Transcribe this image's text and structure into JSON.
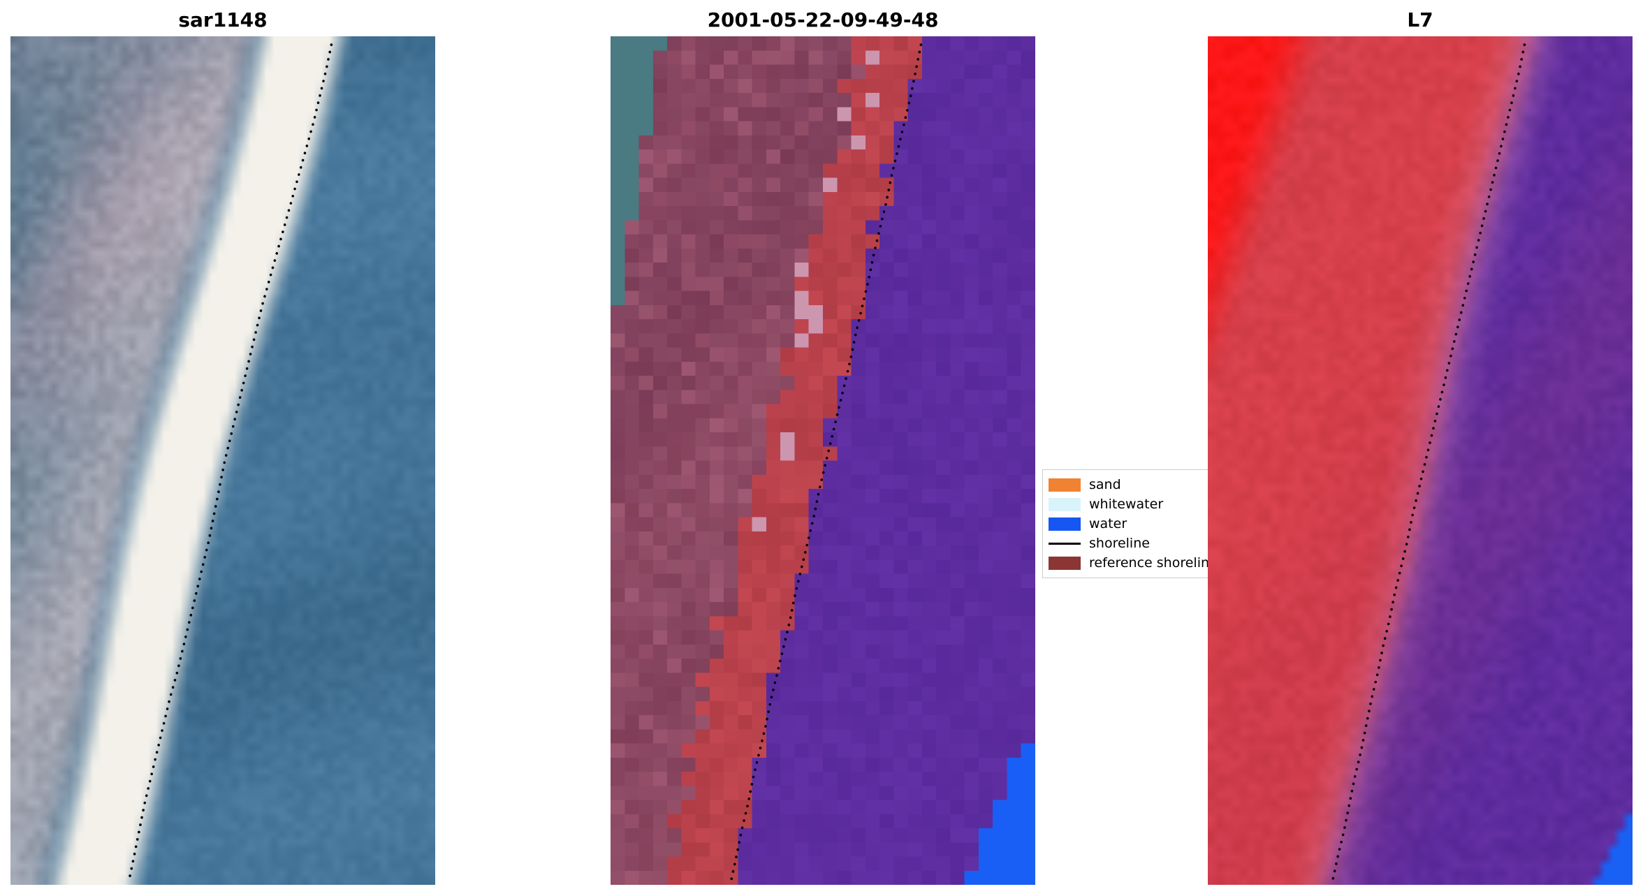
{
  "figure": {
    "background": "#ffffff",
    "panels": [
      {
        "title": "sar1148",
        "kind": "SAR RGB image of coastline with dotted detected shoreline",
        "palette": {
          "water": "#4e7fa3",
          "water_dark": "#3a698c",
          "surf_white": "#f3f1ea",
          "land_slate": "#647d92",
          "land_mauve": "#a198a8",
          "land_light": "#c0bbc3",
          "land_teal": "#3e6a84"
        },
        "shoreline_color": "#000000"
      },
      {
        "title": "2001-05-22-09-49-48",
        "kind": "classified scene with class colours and dotted shoreline",
        "palette": {
          "water_class": "#5d2da0",
          "sand_class": "#ba424c",
          "reference": "#8f4b64",
          "teal_patch": "#4a7a82",
          "whitewater_px": "#cd96af",
          "blue_water": "#195ff5"
        },
        "shoreline_color": "#000000"
      },
      {
        "title": "L7",
        "kind": "Landsat-7 false colour image with dotted shoreline",
        "palette": {
          "red_land": "#d6404a",
          "bright_red": "#fc1616",
          "purple_water": "#5e2c9e",
          "pink_edge": "#d584b4",
          "blue_corner": "#1960f4"
        },
        "shoreline_color": "#000000"
      }
    ],
    "legend": {
      "border_color": "#cccccc",
      "items": [
        {
          "label": "sand",
          "swatch": "patch",
          "color": "#f08232"
        },
        {
          "label": "whitewater",
          "swatch": "patch",
          "color": "#d8f4fa"
        },
        {
          "label": "water",
          "swatch": "patch",
          "color": "#1656f2"
        },
        {
          "label": "shoreline",
          "swatch": "line",
          "color": "#000000"
        },
        {
          "label": "reference shoreline",
          "swatch": "patch",
          "color": "#8c3535"
        }
      ]
    }
  },
  "chart_data": {
    "type": "image",
    "n_panels": 3,
    "panel_titles": [
      "sar1148",
      "2001-05-22-09-49-48",
      "L7"
    ],
    "legend_entries": [
      "sand",
      "whitewater",
      "water",
      "shoreline",
      "reference shoreline"
    ],
    "content_notes": [
      "Left panel: blue-grey SAR image, diagonal white surf band from top-right toward bottom-left, black dotted shoreline along seaward edge of the band",
      "Middle panel: classified image; dusky mauve reference band and brick-red sand band on the left, purple water on the right, small teal patch top-left, bright blue patch bottom-right, dotted shoreline on the sand/water boundary",
      "Right panel: red land on the left with saturated red blob in the top-left corner, purple water on the right, small blue patch bottom-right, dotted shoreline along the boundary"
    ],
    "shoreline": {
      "coords": "fraction of panel width",
      "top_x_frac": 0.75,
      "bottom_x_frac": 0.27
    }
  }
}
